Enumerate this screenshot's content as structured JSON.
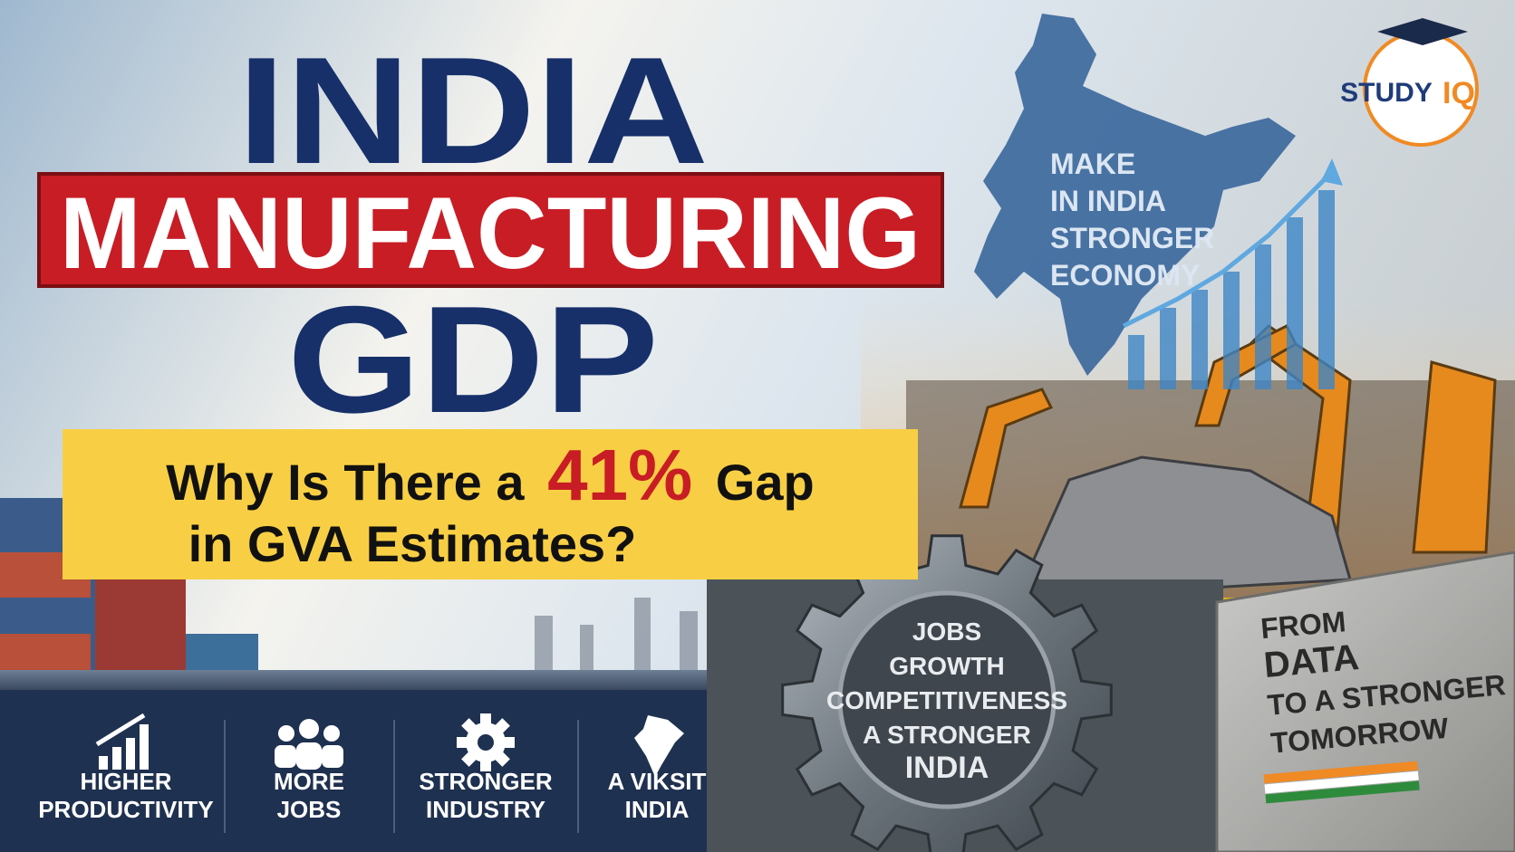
{
  "header": {
    "title_line1": "INDIA",
    "title_line2": "MANUFACTURING",
    "title_line3": "GDP"
  },
  "subtitle": {
    "part1": "Why Is There a",
    "highlight": "41%",
    "part2": "Gap",
    "line2": "in GVA Estimates?"
  },
  "map_text": [
    "MAKE",
    "IN INDIA",
    "STRONGER",
    "ECONOMY"
  ],
  "gear_text": [
    "JOBS",
    "GROWTH",
    "COMPETITIVENESS",
    "A STRONGER",
    "INDIA"
  ],
  "block_text": [
    "FROM",
    "DATA",
    "TO A STRONGER",
    "TOMORROW"
  ],
  "features": [
    {
      "lines": [
        "HIGHER",
        "PRODUCTIVITY"
      ]
    },
    {
      "lines": [
        "MORE",
        "JOBS"
      ]
    },
    {
      "lines": [
        "STRONGER",
        "INDUSTRY"
      ]
    },
    {
      "lines": [
        "A VIKSIT",
        "INDIA"
      ]
    }
  ],
  "logo": {
    "study": "STUDY",
    "iq": "IQ"
  }
}
